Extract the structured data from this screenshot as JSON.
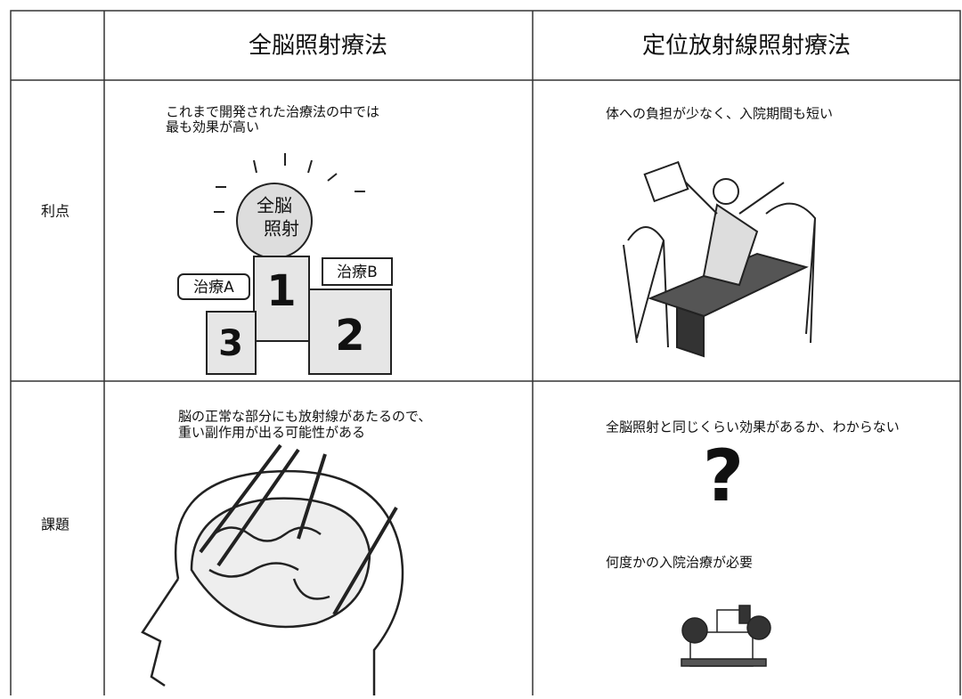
{
  "header": {
    "columns": [
      "全脳照射療法",
      "定位放射線照射療法"
    ]
  },
  "rows": [
    {
      "label": "利点",
      "cells": [
        {
          "lines": [
            "これまで開発された治療法の中では",
            "最も効果が高い"
          ],
          "figure": {
            "ball": [
              "全脳",
              "照射"
            ],
            "first": "1",
            "second": "2",
            "third": "3",
            "tag_a": "治療A",
            "tag_b": "治療B"
          }
        },
        {
          "lines": [
            "体への負担が少なく、入院期間も短い"
          ]
        }
      ]
    },
    {
      "label": "課題",
      "cells": [
        {
          "lines": [
            "脳の正常な部分にも放射線があたるので、",
            "重い副作用が出る可能性がある"
          ]
        },
        {
          "lines": [
            "全脳照射と同じくらい効果があるか、わからない"
          ],
          "symbol": "?",
          "note": "何度かの入院治療が必要"
        }
      ]
    }
  ]
}
